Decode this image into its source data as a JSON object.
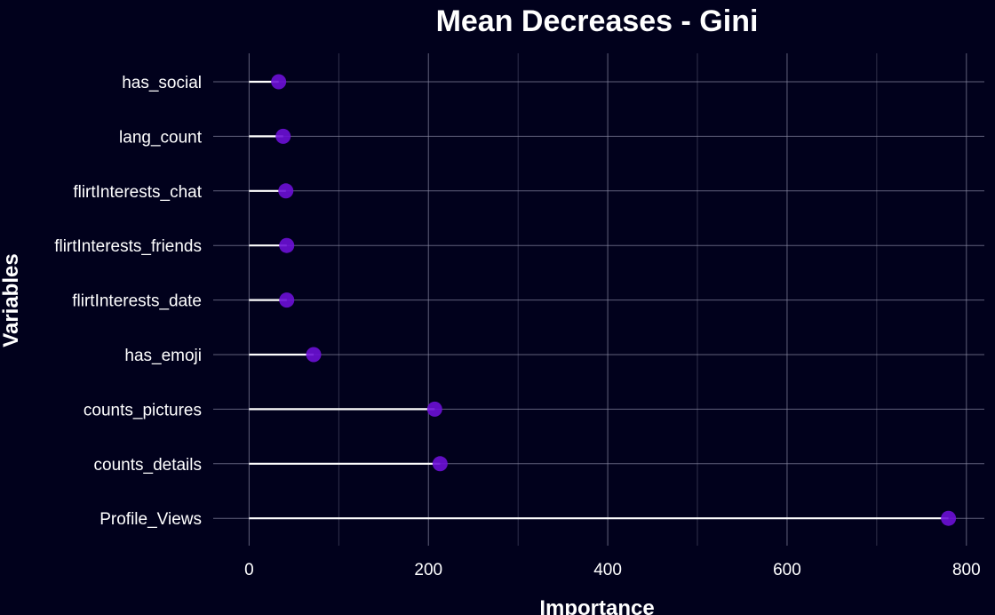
{
  "chart_data": {
    "type": "lollipop",
    "title": "Mean Decreases - Gini",
    "xlabel": "Importance",
    "ylabel": "Variables",
    "categories": [
      "has_social",
      "lang_count",
      "flirtInterests_chat",
      "flirtInterests_friends",
      "flirtInterests_date",
      "has_emoji",
      "counts_pictures",
      "counts_details",
      "Profile_Views"
    ],
    "values": [
      33,
      38,
      41,
      42,
      42,
      72,
      207,
      213,
      780
    ],
    "xlim": [
      -40,
      820
    ],
    "xticks": [
      0,
      200,
      400,
      600,
      800
    ],
    "grid": true,
    "colors": {
      "background": "#01011c",
      "point": "#6c0fd6",
      "stem": "#ffffff",
      "grid": "#8a8aa2"
    }
  }
}
